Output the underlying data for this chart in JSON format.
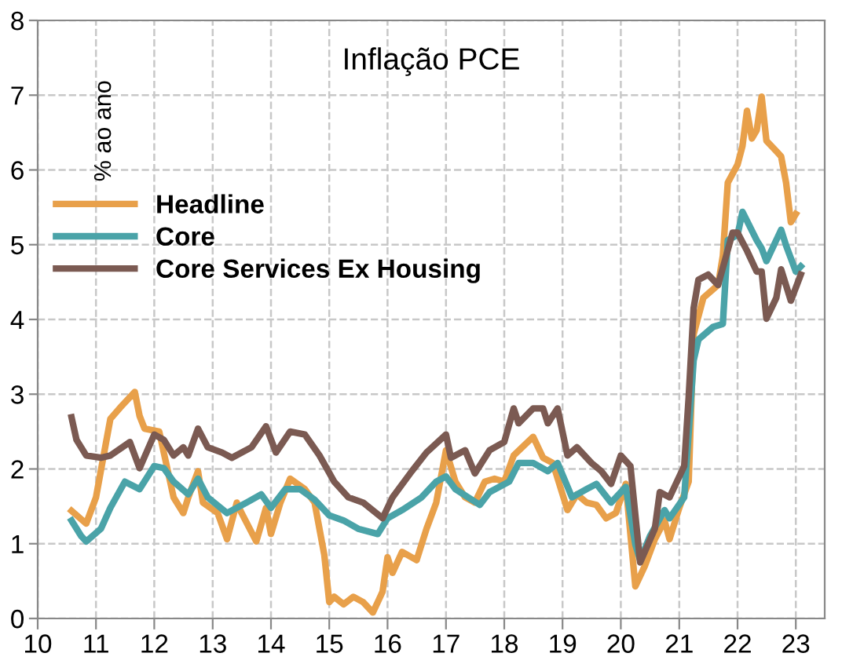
{
  "chart_data": {
    "type": "line",
    "title": "Inflação PCE",
    "ylabel": "% ao ano",
    "xlim": [
      "2010-01",
      "2023-07"
    ],
    "ylim": [
      0,
      8
    ],
    "yticks": [
      0,
      1,
      2,
      3,
      4,
      5,
      6,
      7,
      8
    ],
    "xticks": [
      {
        "value": "2010-01",
        "label": "10"
      },
      {
        "value": "2011-01",
        "label": "11"
      },
      {
        "value": "2012-01",
        "label": "12"
      },
      {
        "value": "2013-01",
        "label": "13"
      },
      {
        "value": "2014-01",
        "label": "14"
      },
      {
        "value": "2015-01",
        "label": "15"
      },
      {
        "value": "2016-01",
        "label": "16"
      },
      {
        "value": "2017-01",
        "label": "17"
      },
      {
        "value": "2018-01",
        "label": "18"
      },
      {
        "value": "2019-01",
        "label": "19"
      },
      {
        "value": "2020-01",
        "label": "20"
      },
      {
        "value": "2021-01",
        "label": "21"
      },
      {
        "value": "2022-01",
        "label": "22"
      },
      {
        "value": "2023-01",
        "label": "23"
      }
    ],
    "grid": true,
    "legend": "top left",
    "line_style": "solid",
    "marker": "none",
    "series": [
      {
        "name": "Headline",
        "color": "#e8a04a",
        "x": [
          "2010-08",
          "2010-11",
          "2011-01",
          "2011-04",
          "2011-06",
          "2011-09",
          "2011-10",
          "2011-11",
          "2012-02",
          "2012-05",
          "2012-07",
          "2012-08",
          "2012-10",
          "2012-11",
          "2013-02",
          "2013-04",
          "2013-06",
          "2013-07",
          "2013-10",
          "2013-12",
          "2014-01",
          "2014-03",
          "2014-05",
          "2014-08",
          "2014-10",
          "2014-12",
          "2015-01",
          "2015-02",
          "2015-04",
          "2015-06",
          "2015-08",
          "2015-10",
          "2015-11",
          "2015-12",
          "2016-01",
          "2016-02",
          "2016-04",
          "2016-07",
          "2016-09",
          "2016-11",
          "2017-01",
          "2017-03",
          "2017-05",
          "2017-07",
          "2017-09",
          "2017-11",
          "2018-01",
          "2018-03",
          "2018-07",
          "2018-09",
          "2018-11",
          "2019-02",
          "2019-04",
          "2019-06",
          "2019-08",
          "2019-10",
          "2019-12",
          "2020-02",
          "2020-03",
          "2020-04",
          "2020-06",
          "2020-08",
          "2020-10",
          "2020-11",
          "2021-01",
          "2021-03",
          "2021-04",
          "2021-06",
          "2021-09",
          "2021-10",
          "2021-11",
          "2022-01",
          "2022-02",
          "2022-03",
          "2022-04",
          "2022-05",
          "2022-06",
          "2022-07",
          "2022-09",
          "2022-10",
          "2022-11",
          "2022-12",
          "2023-01"
        ],
        "values": [
          1.44,
          1.27,
          1.62,
          2.67,
          2.82,
          3.03,
          2.71,
          2.54,
          2.5,
          1.62,
          1.41,
          1.62,
          1.97,
          1.55,
          1.41,
          1.06,
          1.55,
          1.41,
          1.03,
          1.48,
          1.13,
          1.55,
          1.87,
          1.73,
          1.55,
          0.85,
          0.22,
          0.29,
          0.19,
          0.29,
          0.22,
          0.08,
          0.22,
          0.36,
          0.82,
          0.61,
          0.89,
          0.78,
          1.2,
          1.55,
          2.25,
          1.83,
          1.62,
          1.55,
          1.83,
          1.87,
          1.83,
          2.18,
          2.43,
          2.15,
          2.08,
          1.45,
          1.66,
          1.55,
          1.52,
          1.34,
          1.41,
          1.8,
          1.13,
          0.43,
          0.71,
          1.06,
          1.31,
          1.06,
          1.48,
          1.83,
          3.8,
          4.29,
          4.46,
          4.85,
          5.83,
          6.07,
          6.32,
          6.79,
          6.42,
          6.53,
          6.98,
          6.39,
          6.25,
          6.18,
          5.83,
          5.3,
          5.41
        ]
      },
      {
        "name": "Core",
        "color": "#4aa3a8",
        "x": [
          "2010-08",
          "2010-10",
          "2010-11",
          "2011-02",
          "2011-04",
          "2011-07",
          "2011-10",
          "2012-01",
          "2012-03",
          "2012-05",
          "2012-08",
          "2012-10",
          "2012-12",
          "2013-04",
          "2013-08",
          "2013-11",
          "2014-01",
          "2014-04",
          "2014-07",
          "2014-10",
          "2015-01",
          "2015-04",
          "2015-07",
          "2015-11",
          "2016-01",
          "2016-04",
          "2016-08",
          "2016-11",
          "2017-01",
          "2017-03",
          "2017-08",
          "2017-10",
          "2018-02",
          "2018-04",
          "2018-07",
          "2018-10",
          "2018-12",
          "2019-03",
          "2019-06",
          "2019-08",
          "2019-11",
          "2020-02",
          "2020-04",
          "2020-05",
          "2020-07",
          "2020-10",
          "2020-11",
          "2021-02",
          "2021-04",
          "2021-05",
          "2021-08",
          "2021-10",
          "2021-11",
          "2022-01",
          "2022-02",
          "2022-05",
          "2022-06",
          "2022-07",
          "2022-10",
          "2022-11",
          "2023-01",
          "2023-02"
        ],
        "values": [
          1.31,
          1.1,
          1.03,
          1.2,
          1.48,
          1.83,
          1.73,
          2.04,
          2.01,
          1.83,
          1.66,
          1.87,
          1.62,
          1.41,
          1.55,
          1.66,
          1.48,
          1.73,
          1.73,
          1.59,
          1.38,
          1.31,
          1.2,
          1.13,
          1.34,
          1.45,
          1.62,
          1.83,
          1.9,
          1.73,
          1.52,
          1.69,
          1.83,
          2.08,
          2.08,
          1.97,
          2.08,
          1.62,
          1.73,
          1.8,
          1.55,
          1.76,
          0.99,
          0.78,
          1.1,
          1.45,
          1.34,
          1.62,
          3.45,
          3.73,
          3.9,
          3.94,
          5.06,
          5.13,
          5.44,
          5.06,
          4.95,
          4.78,
          5.2,
          4.99,
          4.64,
          4.71
        ]
      },
      {
        "name": "Core Services Ex Housing",
        "color": "#7b5a52",
        "x": [
          "2010-08",
          "2010-09",
          "2010-11",
          "2011-02",
          "2011-04",
          "2011-08",
          "2011-10",
          "2012-01",
          "2012-03",
          "2012-05",
          "2012-07",
          "2012-08",
          "2012-10",
          "2012-12",
          "2013-03",
          "2013-05",
          "2013-09",
          "2013-12",
          "2014-02",
          "2014-05",
          "2014-08",
          "2014-11",
          "2015-02",
          "2015-05",
          "2015-08",
          "2015-12",
          "2016-02",
          "2016-06",
          "2016-09",
          "2017-01",
          "2017-02",
          "2017-05",
          "2017-07",
          "2017-10",
          "2018-01",
          "2018-03",
          "2018-04",
          "2018-07",
          "2018-09",
          "2018-10",
          "2018-12",
          "2019-02",
          "2019-04",
          "2019-07",
          "2019-09",
          "2019-11",
          "2020-01",
          "2020-03",
          "2020-05",
          "2020-08",
          "2020-09",
          "2020-11",
          "2021-02",
          "2021-03",
          "2021-04",
          "2021-05",
          "2021-07",
          "2021-09",
          "2021-12",
          "2022-01",
          "2022-03",
          "2022-05",
          "2022-06",
          "2022-07",
          "2022-09",
          "2022-10",
          "2022-12",
          "2023-02"
        ],
        "values": [
          2.69,
          2.39,
          2.18,
          2.15,
          2.18,
          2.36,
          2.01,
          2.46,
          2.39,
          2.18,
          2.29,
          2.18,
          2.54,
          2.29,
          2.22,
          2.15,
          2.29,
          2.57,
          2.22,
          2.5,
          2.46,
          2.18,
          1.83,
          1.62,
          1.55,
          1.34,
          1.62,
          1.97,
          2.22,
          2.46,
          2.15,
          2.25,
          1.94,
          2.25,
          2.36,
          2.81,
          2.61,
          2.81,
          2.81,
          2.61,
          2.81,
          2.18,
          2.29,
          2.08,
          1.97,
          1.8,
          2.18,
          2.04,
          0.75,
          1.2,
          1.69,
          1.62,
          2.04,
          2.96,
          4.15,
          4.53,
          4.6,
          4.46,
          5.16,
          5.16,
          4.92,
          4.64,
          4.64,
          4.01,
          4.29,
          4.67,
          4.25,
          4.6
        ]
      }
    ]
  }
}
